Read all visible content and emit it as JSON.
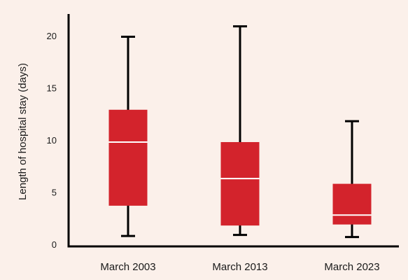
{
  "colors": {
    "background": "#fbf0ea",
    "box_fill": "#d3232c",
    "median_line": "#ffffff",
    "whisker": "#000000",
    "axis": "#000000"
  },
  "chart_data": {
    "type": "box",
    "title": "",
    "xlabel": "",
    "ylabel": "Length of hospital stay (days)",
    "ylim": [
      0,
      22
    ],
    "yticks": [
      0,
      5,
      10,
      15,
      20
    ],
    "grid": false,
    "legend": "none",
    "categories": [
      "March 2003",
      "March 2013",
      "March 2023"
    ],
    "boxes": [
      {
        "category": "March 2003",
        "min": 0.8,
        "q1": 3.7,
        "median": 9.8,
        "q3": 12.9,
        "max": 19.9
      },
      {
        "category": "March 2013",
        "min": 0.9,
        "q1": 1.8,
        "median": 6.3,
        "q3": 9.8,
        "max": 20.9
      },
      {
        "category": "March 2023",
        "min": 0.7,
        "q1": 1.9,
        "median": 2.8,
        "q3": 5.8,
        "max": 11.8
      }
    ]
  }
}
